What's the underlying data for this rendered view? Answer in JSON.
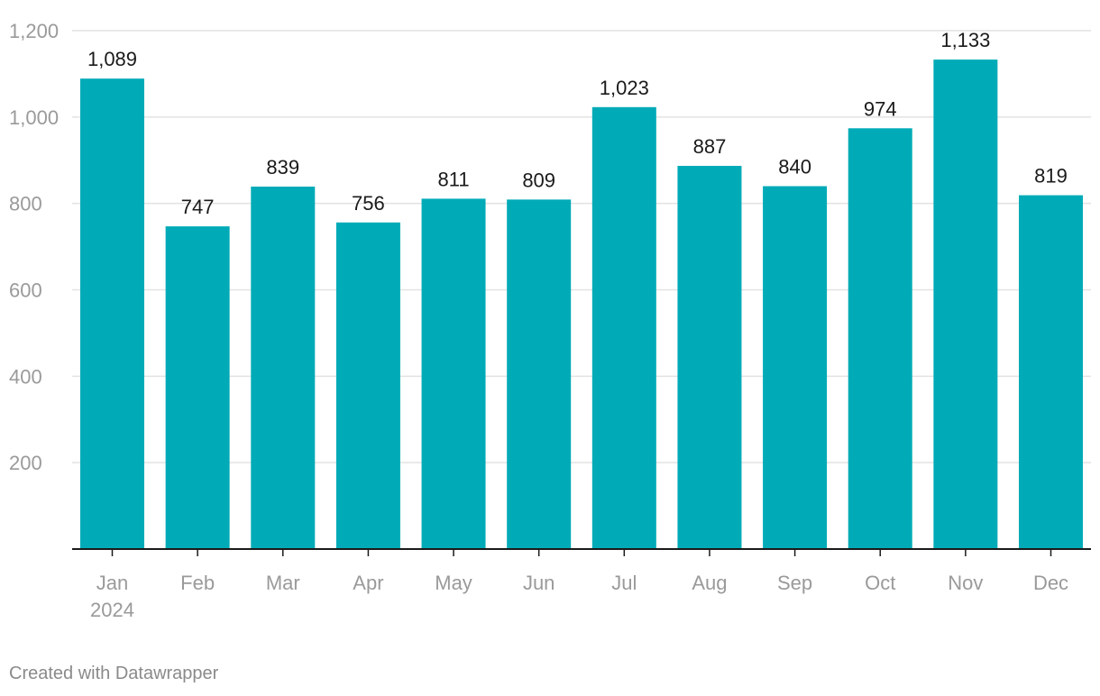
{
  "chart_data": {
    "type": "bar",
    "title": "",
    "xlabel": "",
    "ylabel": "",
    "categories": [
      "Jan",
      "Feb",
      "Mar",
      "Apr",
      "May",
      "Jun",
      "Jul",
      "Aug",
      "Sep",
      "Oct",
      "Nov",
      "Dec"
    ],
    "category_sublabels": [
      "2024",
      "",
      "",
      "",
      "",
      "",
      "",
      "",
      "",
      "",
      "",
      ""
    ],
    "values": [
      1089,
      747,
      839,
      756,
      811,
      809,
      1023,
      887,
      840,
      974,
      1133,
      819
    ],
    "value_labels": [
      "1,089",
      "747",
      "839",
      "756",
      "811",
      "809",
      "1,023",
      "887",
      "840",
      "974",
      "1,133",
      "819"
    ],
    "ylim": [
      0,
      1200
    ],
    "yticks": [
      200,
      400,
      600,
      800,
      1000,
      1200
    ],
    "ytick_labels": [
      "200",
      "400",
      "600",
      "800",
      "1,000",
      "1,200"
    ],
    "grid": true,
    "bar_color": "#00abb7",
    "label_color": "#1a1a1a",
    "tick_color": "#9a9a9a",
    "grid_color": "#e2e2e2",
    "axis_color": "#1a1a1a"
  },
  "footer": {
    "credit": "Created with Datawrapper"
  }
}
